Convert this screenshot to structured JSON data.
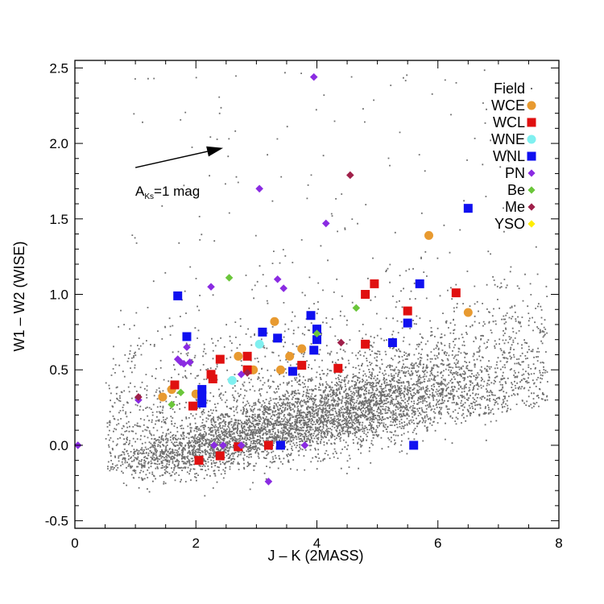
{
  "chart_data": {
    "type": "scatter",
    "title": "",
    "xlabel": "J – K (2MASS)",
    "ylabel": "W1 – W2 (WISE)",
    "xlim": [
      0,
      8
    ],
    "ylim": [
      -0.55,
      2.55
    ],
    "x_ticks": [
      "0",
      "2",
      "4",
      "6",
      "8"
    ],
    "y_ticks": [
      "-0.5",
      "0.0",
      "0.5",
      "1.0",
      "1.5",
      "2.0",
      "2.5"
    ],
    "grid": false,
    "legend_position": "top-right",
    "annotation": {
      "text_main": "A",
      "text_sub": "Ks",
      "text_rest": "=1 mag",
      "arrow_from": [
        1.0,
        1.84
      ],
      "arrow_to": [
        2.45,
        1.97
      ]
    },
    "field": {
      "name": "Field",
      "color": "#6e6e6e",
      "description_count": 9000,
      "ridge": {
        "x_start": 0.4,
        "x_end": 7.8,
        "y_start": -0.15,
        "slope": 0.1
      }
    },
    "series": [
      {
        "name": "WCE",
        "marker": "circle",
        "color": "#E89A30",
        "points": [
          [
            1.45,
            0.32
          ],
          [
            1.6,
            0.37
          ],
          [
            2.0,
            0.34
          ],
          [
            2.7,
            0.59
          ],
          [
            2.95,
            0.5
          ],
          [
            3.3,
            0.82
          ],
          [
            3.4,
            0.5
          ],
          [
            3.55,
            0.59
          ],
          [
            3.75,
            0.64
          ],
          [
            5.85,
            1.39
          ],
          [
            6.5,
            0.88
          ]
        ]
      },
      {
        "name": "WCL",
        "marker": "square",
        "color": "#E01010",
        "points": [
          [
            1.65,
            0.4
          ],
          [
            1.95,
            0.26
          ],
          [
            2.05,
            -0.1
          ],
          [
            2.25,
            0.47
          ],
          [
            2.28,
            0.44
          ],
          [
            2.4,
            0.57
          ],
          [
            2.4,
            -0.07
          ],
          [
            2.7,
            -0.01
          ],
          [
            2.85,
            0.59
          ],
          [
            2.85,
            0.5
          ],
          [
            3.2,
            0.0
          ],
          [
            3.75,
            0.53
          ],
          [
            4.35,
            0.51
          ],
          [
            4.8,
            1.0
          ],
          [
            4.8,
            0.67
          ],
          [
            4.95,
            1.07
          ],
          [
            5.5,
            0.89
          ],
          [
            6.3,
            1.01
          ]
        ]
      },
      {
        "name": "WNE",
        "marker": "circle",
        "color": "#80F0F0",
        "points": [
          [
            2.6,
            0.43
          ],
          [
            3.05,
            0.67
          ]
        ]
      },
      {
        "name": "WNL",
        "marker": "square",
        "color": "#1010F0",
        "points": [
          [
            1.7,
            0.99
          ],
          [
            1.85,
            0.72
          ],
          [
            2.1,
            0.37
          ],
          [
            2.1,
            0.33
          ],
          [
            2.1,
            0.28
          ],
          [
            3.1,
            0.75
          ],
          [
            3.35,
            0.71
          ],
          [
            3.4,
            0.0
          ],
          [
            3.6,
            0.49
          ],
          [
            3.9,
            0.86
          ],
          [
            3.95,
            0.63
          ],
          [
            4.0,
            0.77
          ],
          [
            4.0,
            0.7
          ],
          [
            5.25,
            0.68
          ],
          [
            5.5,
            0.81
          ],
          [
            5.6,
            0.0
          ],
          [
            5.7,
            1.07
          ],
          [
            6.5,
            1.57
          ]
        ]
      },
      {
        "name": "PN",
        "marker": "diamond",
        "color": "#8A2BE2",
        "points": [
          [
            0.05,
            0.0
          ],
          [
            1.05,
            0.3
          ],
          [
            1.7,
            0.57
          ],
          [
            1.75,
            0.55
          ],
          [
            1.8,
            0.54
          ],
          [
            1.85,
            0.65
          ],
          [
            1.9,
            0.55
          ],
          [
            2.25,
            1.05
          ],
          [
            2.3,
            0.0
          ],
          [
            2.45,
            0.0
          ],
          [
            2.75,
            0.47
          ],
          [
            2.75,
            0.0
          ],
          [
            3.05,
            1.7
          ],
          [
            3.2,
            -0.24
          ],
          [
            3.35,
            1.1
          ],
          [
            3.45,
            1.04
          ],
          [
            3.8,
            0.0
          ],
          [
            3.95,
            2.44
          ],
          [
            4.15,
            1.47
          ]
        ]
      },
      {
        "name": "Be",
        "marker": "diamond",
        "color": "#6BC63A",
        "points": [
          [
            1.6,
            0.27
          ],
          [
            1.75,
            0.35
          ],
          [
            2.55,
            1.11
          ],
          [
            4.0,
            0.74
          ],
          [
            4.65,
            0.91
          ]
        ]
      },
      {
        "name": "Me",
        "marker": "diamond",
        "color": "#A0204A",
        "points": [
          [
            1.05,
            0.32
          ],
          [
            2.85,
            0.48
          ],
          [
            4.4,
            0.68
          ],
          [
            4.55,
            1.79
          ]
        ]
      },
      {
        "name": "YSO",
        "marker": "diamond",
        "color": "#FFEE00",
        "points": []
      }
    ]
  }
}
